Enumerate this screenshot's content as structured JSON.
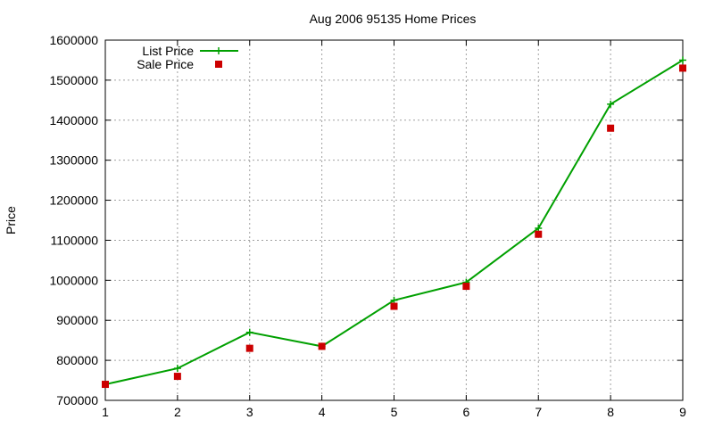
{
  "chart_data": {
    "type": "line",
    "title": "Aug 2006 95135 Home Prices",
    "xlabel": "",
    "ylabel": "Price",
    "xlim": [
      1,
      9
    ],
    "ylim": [
      700000,
      1600000
    ],
    "x_ticks": [
      "1",
      "2",
      "3",
      "4",
      "5",
      "6",
      "7",
      "8",
      "9"
    ],
    "y_ticks": [
      "700000",
      "800000",
      "900000",
      "1000000",
      "1100000",
      "1200000",
      "1300000",
      "1400000",
      "1500000",
      "1600000"
    ],
    "grid": true,
    "legend_position": "top-left",
    "series": [
      {
        "name": "List Price",
        "style": "line+cross",
        "color": "#00a000",
        "x": [
          1,
          2,
          3,
          4,
          5,
          6,
          7,
          8,
          9
        ],
        "values": [
          740000,
          780000,
          870000,
          835000,
          950000,
          995000,
          1130000,
          1440000,
          1550000
        ]
      },
      {
        "name": "Sale Price",
        "style": "square",
        "color": "#cc0000",
        "x": [
          1,
          2,
          3,
          4,
          5,
          6,
          7,
          8,
          9
        ],
        "values": [
          740000,
          760000,
          830000,
          835000,
          935000,
          985000,
          1115000,
          1380000,
          1530000
        ]
      }
    ]
  }
}
